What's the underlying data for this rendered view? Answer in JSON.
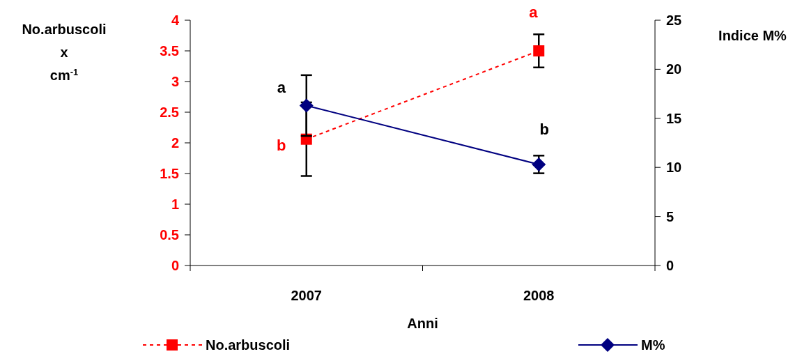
{
  "chart_data": {
    "type": "line",
    "xlabel": "Anni",
    "ylabel": "No.arbuscoli\nx\ncm$^{-1}$",
    "y2label": "Indice M%",
    "categories": [
      "2007",
      "2008"
    ],
    "series": [
      {
        "name": "No.arbuscoli",
        "color": "#ff0000",
        "values": [
          2.06,
          3.5
        ],
        "errors": [
          0.6,
          0.27
        ],
        "value_labels": [
          "b",
          "a"
        ],
        "marker": "square",
        "line_style": "dashed"
      },
      {
        "name": "M%",
        "color": "#000080",
        "values": [
          16.3,
          10.3
        ],
        "errors": [
          3.1,
          0.9
        ],
        "value_labels": [
          "a",
          "b"
        ],
        "marker": "diamond",
        "line_style": "solid",
        "axis": "y2"
      }
    ],
    "ylim": [
      0,
      4
    ],
    "yticks": [
      0,
      0.5,
      1,
      1.5,
      2,
      2.5,
      3,
      3.5,
      4
    ],
    "y2lim": [
      0,
      25
    ],
    "y2ticks": [
      0,
      5,
      10,
      15,
      20,
      25
    ],
    "grid": false,
    "legend": "bottom"
  }
}
